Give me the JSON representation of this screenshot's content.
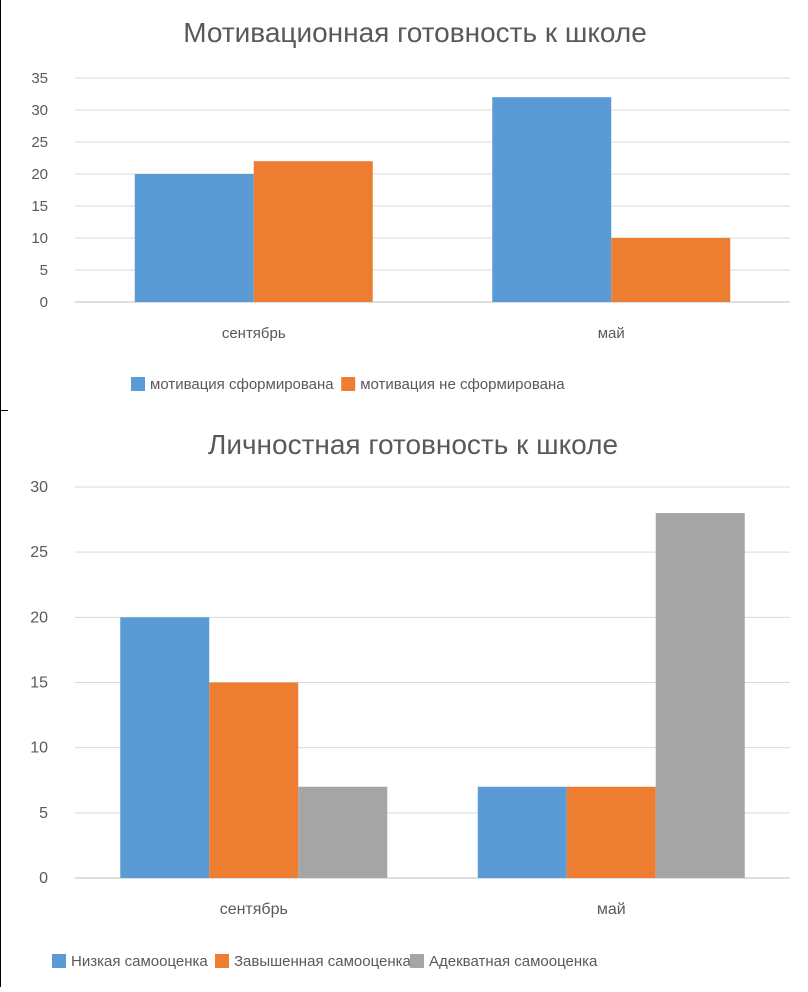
{
  "chart_data": [
    {
      "type": "bar",
      "title": "Мотивационная готовность к школе",
      "categories": [
        "сентябрь",
        "май"
      ],
      "series": [
        {
          "name": "мотивация сформирована",
          "values": [
            20,
            32
          ],
          "color": "#5B9BD5"
        },
        {
          "name": "мотивация не сформирована",
          "values": [
            22,
            10
          ],
          "color": "#ED7D31"
        }
      ],
      "ylim": [
        0,
        35
      ],
      "yticks": [
        "0",
        "5",
        "10",
        "15",
        "20",
        "25",
        "30",
        "35"
      ],
      "grid": true,
      "legend": "bottom"
    },
    {
      "type": "bar",
      "title": "Личностная готовность к школе",
      "categories": [
        "сентябрь",
        "май"
      ],
      "series": [
        {
          "name": "Низкая самооценка",
          "values": [
            20,
            7
          ],
          "color": "#5B9BD5"
        },
        {
          "name": "Завышенная самооценка",
          "values": [
            15,
            7
          ],
          "color": "#ED7D31"
        },
        {
          "name": "Адекватная самооценка",
          "values": [
            7,
            28
          ],
          "color": "#A5A5A5"
        }
      ],
      "ylim": [
        0,
        30
      ],
      "yticks": [
        "0",
        "5",
        "10",
        "15",
        "20",
        "25",
        "30"
      ],
      "grid": true,
      "legend": "bottom"
    }
  ]
}
